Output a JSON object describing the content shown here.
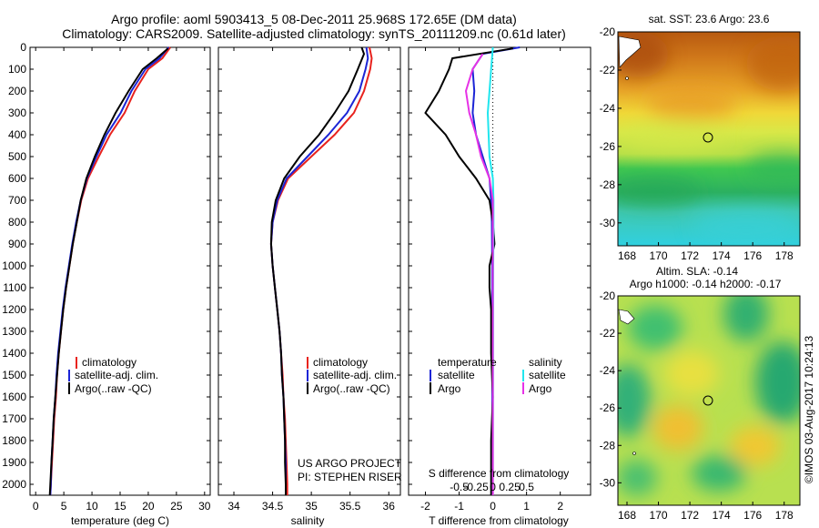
{
  "header": {
    "title_line1": "Argo profile: aoml 5903413_5 08-Dec-2011 25.968S 172.65E (DM data)",
    "title_line2": "Climatology: CARS2009. Satellite-adjusted climatology: synTS_20111209.nc (0.61d later)"
  },
  "colors": {
    "climatology": "#e8231e",
    "satellite": "#1c25d6",
    "argo": "#000000",
    "s_satellite": "#21e6ee",
    "s_argo": "#e632e6"
  },
  "chart_data": [
    {
      "type": "line",
      "id": "temperature",
      "xlabel": "temperature (deg C)",
      "ylabel": "",
      "xlim": [
        -1,
        31
      ],
      "ylim": [
        2050,
        0
      ],
      "xticks": [
        0,
        5,
        10,
        15,
        20,
        25,
        30
      ],
      "xtick_labels": [
        "0",
        "5",
        "10",
        "15",
        "20",
        "25",
        "30"
      ],
      "yticks": [
        0,
        100,
        200,
        300,
        400,
        500,
        600,
        700,
        800,
        900,
        1000,
        1100,
        1200,
        1300,
        1400,
        1500,
        1600,
        1700,
        1800,
        1900,
        2000
      ],
      "ytick_labels": [
        "0",
        "100",
        "200",
        "300",
        "400",
        "500",
        "600",
        "700",
        "800",
        "900",
        "1000",
        "1100",
        "1200",
        "1300",
        "1400",
        "1500",
        "1600",
        "1700",
        "1800",
        "1900",
        "2000"
      ],
      "legend": [
        "climatology",
        "satellite-adj. clim.",
        "Argo(..raw -QC)"
      ],
      "series": [
        {
          "name": "climatology",
          "color": "#e8231e",
          "pts": [
            [
              23.9,
              0
            ],
            [
              22.5,
              50
            ],
            [
              20,
              100
            ],
            [
              17.6,
              200
            ],
            [
              15.8,
              300
            ],
            [
              13.2,
              400
            ],
            [
              11.2,
              500
            ],
            [
              9.3,
              600
            ],
            [
              8.1,
              700
            ],
            [
              7.3,
              800
            ],
            [
              6.6,
              900
            ],
            [
              6.0,
              1000
            ],
            [
              5.4,
              1100
            ],
            [
              4.9,
              1200
            ],
            [
              4.5,
              1300
            ],
            [
              4.1,
              1400
            ],
            [
              3.8,
              1500
            ],
            [
              3.6,
              1600
            ],
            [
              3.3,
              1700
            ],
            [
              3.1,
              1800
            ],
            [
              2.9,
              1900
            ],
            [
              2.7,
              2000
            ],
            [
              2.6,
              2050
            ]
          ]
        },
        {
          "name": "satellite-adj. clim.",
          "color": "#1c25d6",
          "pts": [
            [
              23.6,
              0
            ],
            [
              22,
              50
            ],
            [
              19.5,
              100
            ],
            [
              17,
              200
            ],
            [
              15.1,
              300
            ],
            [
              12.6,
              400
            ],
            [
              10.8,
              500
            ],
            [
              9.1,
              600
            ],
            [
              8,
              700
            ],
            [
              7.2,
              800
            ],
            [
              6.5,
              900
            ],
            [
              5.9,
              1000
            ],
            [
              5.3,
              1100
            ],
            [
              4.8,
              1200
            ],
            [
              4.4,
              1300
            ],
            [
              4.0,
              1400
            ],
            [
              3.7,
              1500
            ],
            [
              3.5,
              1600
            ],
            [
              3.2,
              1700
            ],
            [
              3,
              1800
            ],
            [
              2.8,
              1900
            ],
            [
              2.7,
              2000
            ],
            [
              2.6,
              2050
            ]
          ]
        },
        {
          "name": "Argo(..raw -QC)",
          "color": "#000000",
          "pts": [
            [
              23.5,
              5
            ],
            [
              21.5,
              50
            ],
            [
              19,
              100
            ],
            [
              16.5,
              200
            ],
            [
              14.2,
              300
            ],
            [
              12.2,
              400
            ],
            [
              10.5,
              500
            ],
            [
              9,
              600
            ],
            [
              8,
              700
            ],
            [
              7.3,
              800
            ],
            [
              6.6,
              900
            ],
            [
              6.0,
              1000
            ],
            [
              5.4,
              1100
            ],
            [
              4.9,
              1200
            ],
            [
              4.5,
              1300
            ],
            [
              4.1,
              1400
            ],
            [
              3.8,
              1500
            ],
            [
              3.5,
              1600
            ],
            [
              3.2,
              1700
            ],
            [
              3,
              1800
            ],
            [
              2.8,
              1900
            ],
            [
              2.6,
              2000
            ],
            [
              2.5,
              2050
            ]
          ]
        }
      ]
    },
    {
      "type": "line",
      "id": "salinity",
      "xlabel": "salinity",
      "xlim": [
        33.8,
        36.15
      ],
      "ylim": [
        2050,
        0
      ],
      "xticks": [
        34,
        34.5,
        35,
        35.5,
        36
      ],
      "xtick_labels": [
        "34",
        "34.5",
        "35",
        "35.5",
        "36"
      ],
      "legend": [
        "climatology",
        "satellite-adj. clim.",
        "Argo(..raw -QC)"
      ],
      "annotations": [
        "US ARGO PROJECT",
        "PI: STEPHEN RISER"
      ],
      "series": [
        {
          "name": "climatology",
          "color": "#e8231e",
          "pts": [
            [
              35.75,
              0
            ],
            [
              35.78,
              50
            ],
            [
              35.76,
              100
            ],
            [
              35.68,
              200
            ],
            [
              35.55,
              300
            ],
            [
              35.3,
              400
            ],
            [
              35.0,
              500
            ],
            [
              34.7,
              600
            ],
            [
              34.57,
              700
            ],
            [
              34.5,
              800
            ],
            [
              34.48,
              900
            ],
            [
              34.5,
              1000
            ],
            [
              34.53,
              1100
            ],
            [
              34.56,
              1200
            ],
            [
              34.59,
              1300
            ],
            [
              34.61,
              1400
            ],
            [
              34.63,
              1500
            ],
            [
              34.64,
              1600
            ],
            [
              34.66,
              1700
            ],
            [
              34.67,
              1800
            ],
            [
              34.68,
              1900
            ],
            [
              34.69,
              2000
            ],
            [
              34.69,
              2050
            ]
          ]
        },
        {
          "name": "satellite-adj. clim.",
          "color": "#1c25d6",
          "pts": [
            [
              35.71,
              0
            ],
            [
              35.73,
              50
            ],
            [
              35.7,
              100
            ],
            [
              35.62,
              200
            ],
            [
              35.46,
              300
            ],
            [
              35.22,
              400
            ],
            [
              34.95,
              500
            ],
            [
              34.68,
              600
            ],
            [
              34.56,
              700
            ],
            [
              34.5,
              800
            ],
            [
              34.48,
              900
            ],
            [
              34.5,
              1000
            ],
            [
              34.53,
              1100
            ],
            [
              34.56,
              1200
            ],
            [
              34.59,
              1300
            ],
            [
              34.61,
              1400
            ],
            [
              34.62,
              1500
            ],
            [
              34.64,
              1600
            ],
            [
              34.65,
              1700
            ],
            [
              34.66,
              1800
            ],
            [
              34.67,
              1900
            ],
            [
              34.67,
              2000
            ],
            [
              34.67,
              2050
            ]
          ]
        },
        {
          "name": "Argo(..raw -QC)",
          "color": "#000000",
          "pts": [
            [
              35.65,
              0
            ],
            [
              35.68,
              30
            ],
            [
              35.6,
              100
            ],
            [
              35.48,
              200
            ],
            [
              35.3,
              300
            ],
            [
              35.1,
              400
            ],
            [
              34.85,
              500
            ],
            [
              34.65,
              600
            ],
            [
              34.54,
              700
            ],
            [
              34.49,
              800
            ],
            [
              34.48,
              900
            ],
            [
              34.5,
              1000
            ],
            [
              34.53,
              1100
            ],
            [
              34.56,
              1200
            ],
            [
              34.59,
              1300
            ],
            [
              34.61,
              1400
            ],
            [
              34.62,
              1500
            ],
            [
              34.64,
              1600
            ],
            [
              34.65,
              1700
            ],
            [
              34.66,
              1800
            ],
            [
              34.66,
              1900
            ],
            [
              34.67,
              2000
            ],
            [
              34.67,
              2050
            ]
          ]
        }
      ]
    },
    {
      "type": "line",
      "id": "difference",
      "xlabel": "T difference from climatology",
      "xlabel_top": "S difference from climatology",
      "xlim": [
        -2.5,
        2.9
      ],
      "ylim": [
        2050,
        0
      ],
      "xticks": [
        -2,
        -1,
        0,
        1,
        2
      ],
      "xtick_labels": [
        "-2",
        "-1",
        "0",
        "1",
        "2"
      ],
      "sticks": [
        -1,
        -0.5,
        0,
        0.5,
        1
      ],
      "stick_labels": [
        "-0.5",
        "-0.25",
        "0",
        "0.25",
        "0.5"
      ],
      "legend_t_title": "temperature",
      "legend_s_title": "salinity",
      "legend": [
        "satellite",
        "Argo",
        "satellite",
        "Argo"
      ],
      "series": [
        {
          "name": "satellite",
          "color": "#1c25d6",
          "pts": [
            [
              0.8,
              0
            ],
            [
              -0.3,
              30
            ],
            [
              -0.6,
              100
            ],
            [
              -0.55,
              200
            ],
            [
              -0.6,
              300
            ],
            [
              -0.5,
              400
            ],
            [
              -0.3,
              500
            ],
            [
              -0.1,
              600
            ],
            [
              -0.05,
              700
            ],
            [
              -0.03,
              800
            ],
            [
              -0.02,
              1000
            ],
            [
              -0.02,
              1500
            ],
            [
              -0.01,
              2050
            ]
          ]
        },
        {
          "name": "Argo",
          "color": "#000000",
          "pts": [
            [
              0.6,
              5
            ],
            [
              -1.2,
              50
            ],
            [
              -1.3,
              100
            ],
            [
              -1.6,
              200
            ],
            [
              -2,
              300
            ],
            [
              -1.4,
              400
            ],
            [
              -1,
              500
            ],
            [
              -0.5,
              600
            ],
            [
              -0.1,
              700
            ],
            [
              0,
              800
            ],
            [
              0.05,
              900
            ],
            [
              -0.1,
              1000
            ],
            [
              -0.1,
              1100
            ],
            [
              -0.05,
              1200
            ],
            [
              -0.05,
              1400
            ],
            [
              0,
              1600
            ],
            [
              -0.05,
              1800
            ],
            [
              -0.05,
              2050
            ]
          ]
        },
        {
          "name": "satellite",
          "color": "#21e6ee",
          "pts": [
            [
              0,
              0
            ],
            [
              -0.05,
              100
            ],
            [
              -0.1,
              200
            ],
            [
              -0.15,
              300
            ],
            [
              -0.1,
              500
            ],
            [
              0,
              600
            ],
            [
              0.02,
              700
            ],
            [
              0.02,
              800
            ],
            [
              0.01,
              1000
            ],
            [
              0,
              2050
            ]
          ]
        },
        {
          "name": "Argo",
          "color": "#e632e6",
          "pts": [
            [
              -0.3,
              30
            ],
            [
              -0.6,
              100
            ],
            [
              -0.8,
              200
            ],
            [
              -0.7,
              300
            ],
            [
              -0.5,
              400
            ],
            [
              -0.35,
              500
            ],
            [
              -0.1,
              600
            ],
            [
              0,
              700
            ],
            [
              0,
              800
            ],
            [
              0,
              1000
            ],
            [
              0,
              2050
            ]
          ]
        }
      ]
    }
  ],
  "maps": {
    "top": {
      "title": "sat. SST: 23.6 Argo: 23.6",
      "yticks": [
        "-20",
        "-22",
        "-24",
        "-26",
        "-28",
        "-30"
      ],
      "xticks": [
        "168",
        "170",
        "172",
        "174",
        "176",
        "178"
      ]
    },
    "bottom": {
      "title_line1": "Altim. SLA: -0.14",
      "title_line2": "Argo h1000: -0.14 h2000: -0.17",
      "yticks": [
        "-20",
        "-22",
        "-24",
        "-26",
        "-28",
        "-30"
      ],
      "xticks": [
        "168",
        "170",
        "172",
        "174",
        "176",
        "178"
      ]
    }
  },
  "footer": {
    "credit": "©IMOS 03-Aug-2017 10:24:13"
  }
}
